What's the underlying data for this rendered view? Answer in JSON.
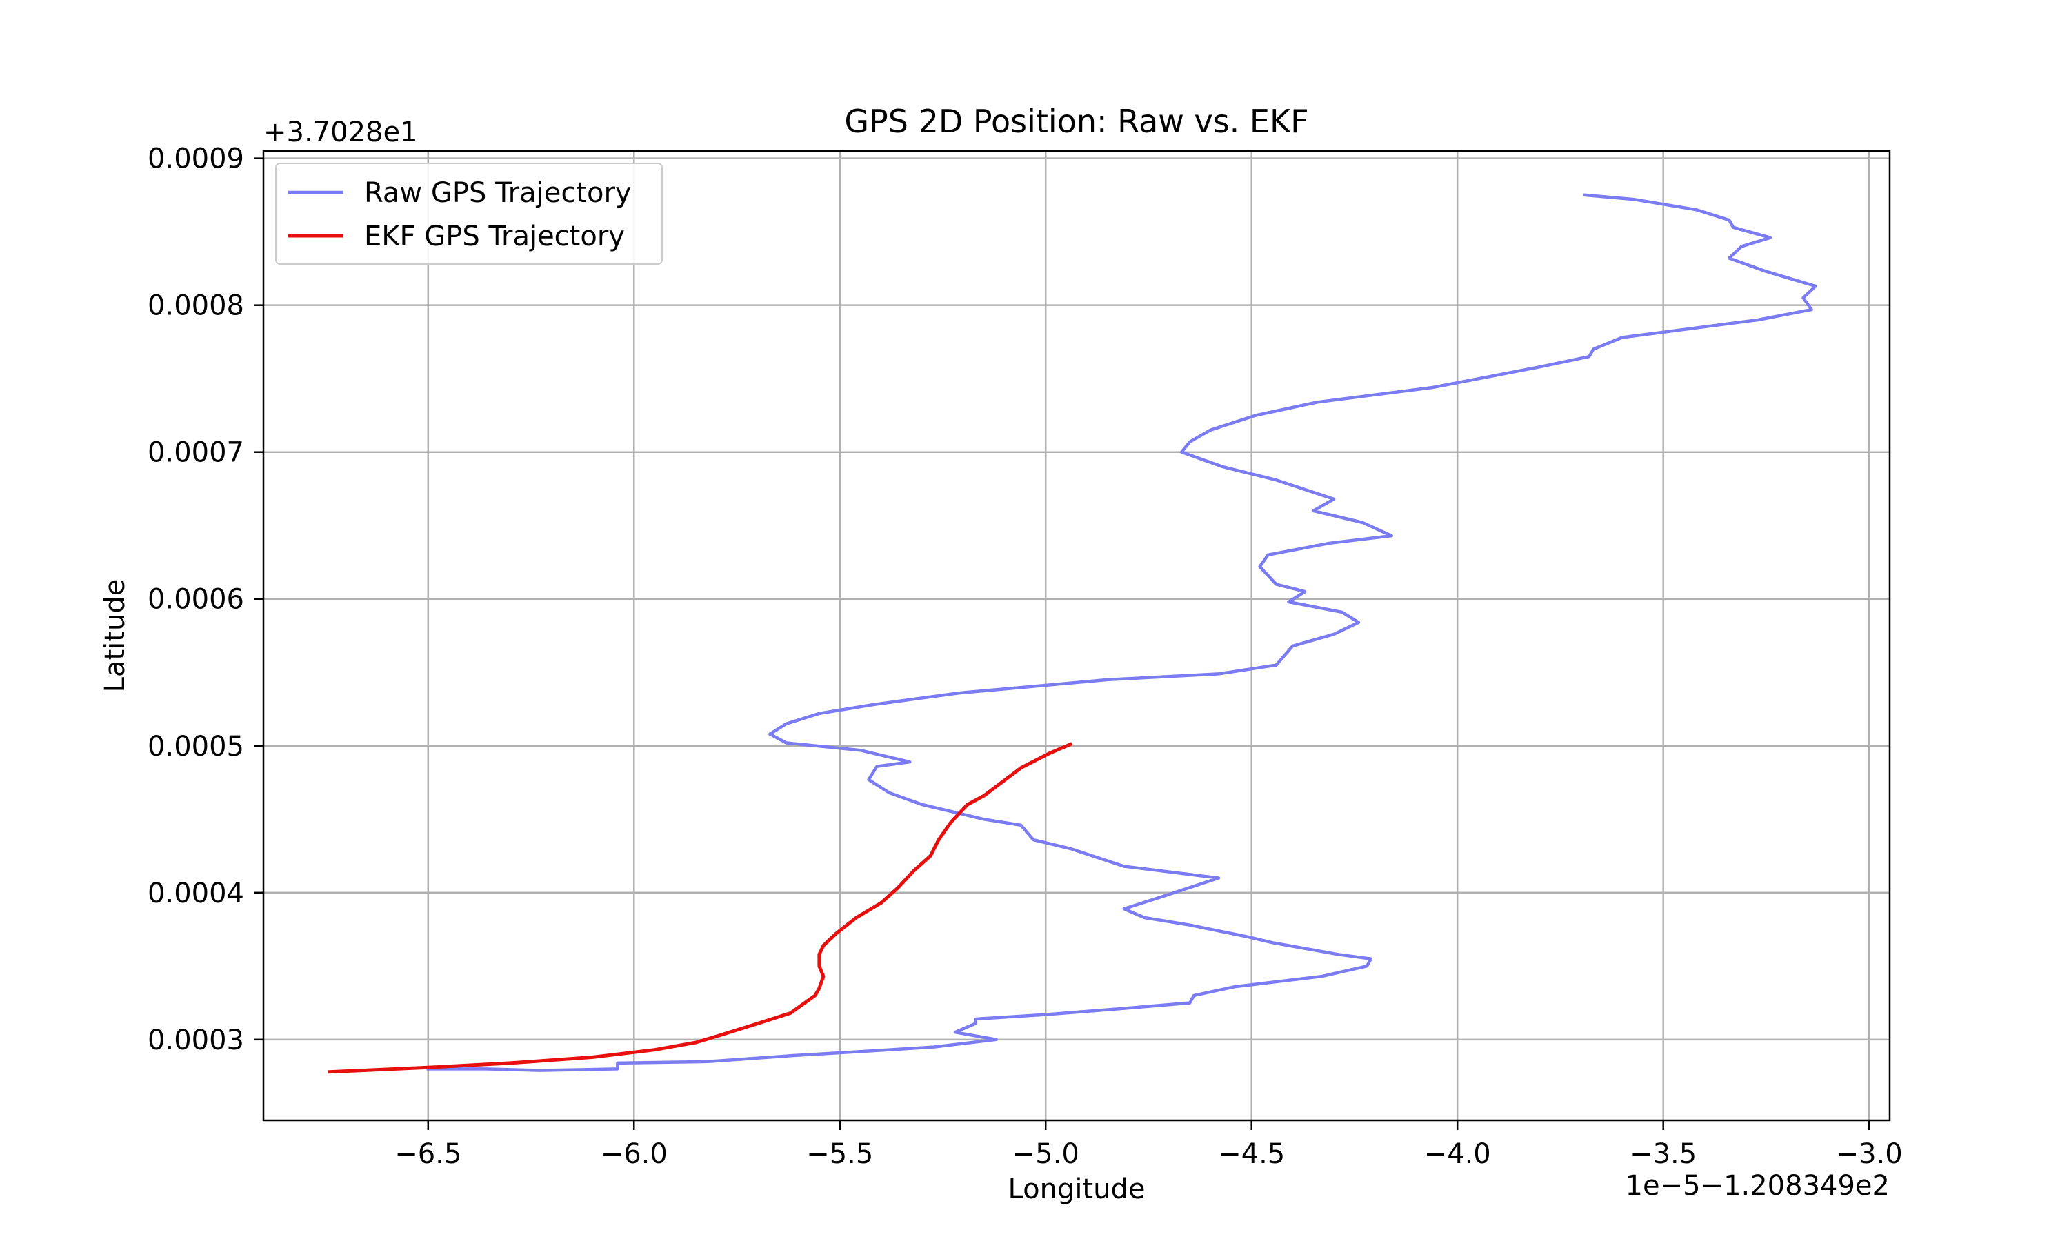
{
  "chart_data": {
    "type": "line",
    "title": "GPS 2D Position: Raw vs. EKF",
    "xlabel": "Longitude",
    "ylabel": "Latitude",
    "x_offset_text": "1e−5−1.208349e2",
    "y_offset_text": "+3.7028e1",
    "xlim": [
      -6.9,
      -2.95
    ],
    "ylim": [
      0.000245,
      0.000905
    ],
    "x_ticks": [
      -6.5,
      -6.0,
      -5.5,
      -5.0,
      -4.5,
      -4.0,
      -3.5,
      -3.0
    ],
    "x_tick_labels": [
      "−6.5",
      "−6.0",
      "−5.5",
      "−5.0",
      "−4.5",
      "−4.0",
      "−3.5",
      "−3.0"
    ],
    "y_ticks": [
      0.0003,
      0.0004,
      0.0005,
      0.0006,
      0.0007,
      0.0008,
      0.0009
    ],
    "y_tick_labels": [
      "0.0003",
      "0.0004",
      "0.0005",
      "0.0006",
      "0.0007",
      "0.0008",
      "0.0009"
    ],
    "grid": true,
    "legend_position": "top-left",
    "series": [
      {
        "name": "Raw GPS Trajectory",
        "color": "#7b7bf2",
        "points": [
          [
            -3.69,
            0.000875
          ],
          [
            -3.57,
            0.000872
          ],
          [
            -3.42,
            0.000865
          ],
          [
            -3.34,
            0.000858
          ],
          [
            -3.33,
            0.000853
          ],
          [
            -3.24,
            0.000846
          ],
          [
            -3.31,
            0.00084
          ],
          [
            -3.34,
            0.000832
          ],
          [
            -3.25,
            0.000823
          ],
          [
            -3.13,
            0.000813
          ],
          [
            -3.16,
            0.000805
          ],
          [
            -3.14,
            0.000797
          ],
          [
            -3.27,
            0.00079
          ],
          [
            -3.6,
            0.000778
          ],
          [
            -3.67,
            0.00077
          ],
          [
            -3.68,
            0.000765
          ],
          [
            -3.8,
            0.000758
          ],
          [
            -4.06,
            0.000744
          ],
          [
            -4.34,
            0.000734
          ],
          [
            -4.49,
            0.000725
          ],
          [
            -4.6,
            0.000715
          ],
          [
            -4.65,
            0.000707
          ],
          [
            -4.67,
            0.0007
          ],
          [
            -4.57,
            0.00069
          ],
          [
            -4.44,
            0.000681
          ],
          [
            -4.3,
            0.000668
          ],
          [
            -4.35,
            0.00066
          ],
          [
            -4.23,
            0.000652
          ],
          [
            -4.16,
            0.000643
          ],
          [
            -4.31,
            0.000638
          ],
          [
            -4.46,
            0.00063
          ],
          [
            -4.48,
            0.000622
          ],
          [
            -4.44,
            0.00061
          ],
          [
            -4.37,
            0.000605
          ],
          [
            -4.41,
            0.000598
          ],
          [
            -4.28,
            0.000591
          ],
          [
            -4.24,
            0.000584
          ],
          [
            -4.3,
            0.000576
          ],
          [
            -4.4,
            0.000568
          ],
          [
            -4.44,
            0.000555
          ],
          [
            -4.58,
            0.000549
          ],
          [
            -4.85,
            0.000545
          ],
          [
            -5.05,
            0.00054
          ],
          [
            -5.21,
            0.000536
          ],
          [
            -5.42,
            0.000528
          ],
          [
            -5.55,
            0.000522
          ],
          [
            -5.63,
            0.000515
          ],
          [
            -5.67,
            0.000508
          ],
          [
            -5.63,
            0.000502
          ],
          [
            -5.45,
            0.000497
          ],
          [
            -5.33,
            0.000489
          ],
          [
            -5.41,
            0.000486
          ],
          [
            -5.43,
            0.000477
          ],
          [
            -5.38,
            0.000468
          ],
          [
            -5.3,
            0.00046
          ],
          [
            -5.15,
            0.00045
          ],
          [
            -5.06,
            0.000446
          ],
          [
            -5.03,
            0.000436
          ],
          [
            -4.94,
            0.00043
          ],
          [
            -4.81,
            0.000418
          ],
          [
            -4.58,
            0.00041
          ],
          [
            -4.71,
            0.000398
          ],
          [
            -4.81,
            0.000389
          ],
          [
            -4.76,
            0.000383
          ],
          [
            -4.65,
            0.000378
          ],
          [
            -4.51,
            0.00037
          ],
          [
            -4.45,
            0.000366
          ],
          [
            -4.29,
            0.000358
          ],
          [
            -4.21,
            0.000355
          ],
          [
            -4.22,
            0.00035
          ],
          [
            -4.33,
            0.000343
          ],
          [
            -4.54,
            0.000336
          ],
          [
            -4.64,
            0.00033
          ],
          [
            -4.65,
            0.000325
          ],
          [
            -4.82,
            0.000321
          ],
          [
            -5.0,
            0.000317
          ],
          [
            -5.17,
            0.000314
          ],
          [
            -5.17,
            0.000311
          ],
          [
            -5.22,
            0.000305
          ],
          [
            -5.12,
            0.0003
          ],
          [
            -5.27,
            0.000295
          ],
          [
            -5.44,
            0.000292
          ],
          [
            -5.62,
            0.000289
          ],
          [
            -5.82,
            0.000285
          ],
          [
            -6.04,
            0.000284
          ],
          [
            -6.04,
            0.00028
          ],
          [
            -6.23,
            0.000279
          ],
          [
            -6.36,
            0.00028
          ],
          [
            -6.5,
            0.00028
          ]
        ]
      },
      {
        "name": "EKF GPS Trajectory",
        "color": "#e8100e",
        "points": [
          [
            -4.94,
            0.000501
          ],
          [
            -4.99,
            0.000495
          ],
          [
            -5.06,
            0.000485
          ],
          [
            -5.15,
            0.000466
          ],
          [
            -5.19,
            0.00046
          ],
          [
            -5.23,
            0.000448
          ],
          [
            -5.26,
            0.000436
          ],
          [
            -5.28,
            0.000425
          ],
          [
            -5.32,
            0.000415
          ],
          [
            -5.36,
            0.000403
          ],
          [
            -5.4,
            0.000393
          ],
          [
            -5.46,
            0.000383
          ],
          [
            -5.51,
            0.000372
          ],
          [
            -5.54,
            0.000364
          ],
          [
            -5.55,
            0.000358
          ],
          [
            -5.55,
            0.00035
          ],
          [
            -5.54,
            0.000343
          ],
          [
            -5.55,
            0.000335
          ],
          [
            -5.56,
            0.00033
          ],
          [
            -5.59,
            0.000324
          ],
          [
            -5.62,
            0.000318
          ],
          [
            -5.71,
            0.00031
          ],
          [
            -5.79,
            0.000303
          ],
          [
            -5.85,
            0.000298
          ],
          [
            -5.95,
            0.000293
          ],
          [
            -6.1,
            0.000288
          ],
          [
            -6.3,
            0.000284
          ],
          [
            -6.5,
            0.000281
          ],
          [
            -6.74,
            0.000278
          ]
        ]
      }
    ]
  }
}
